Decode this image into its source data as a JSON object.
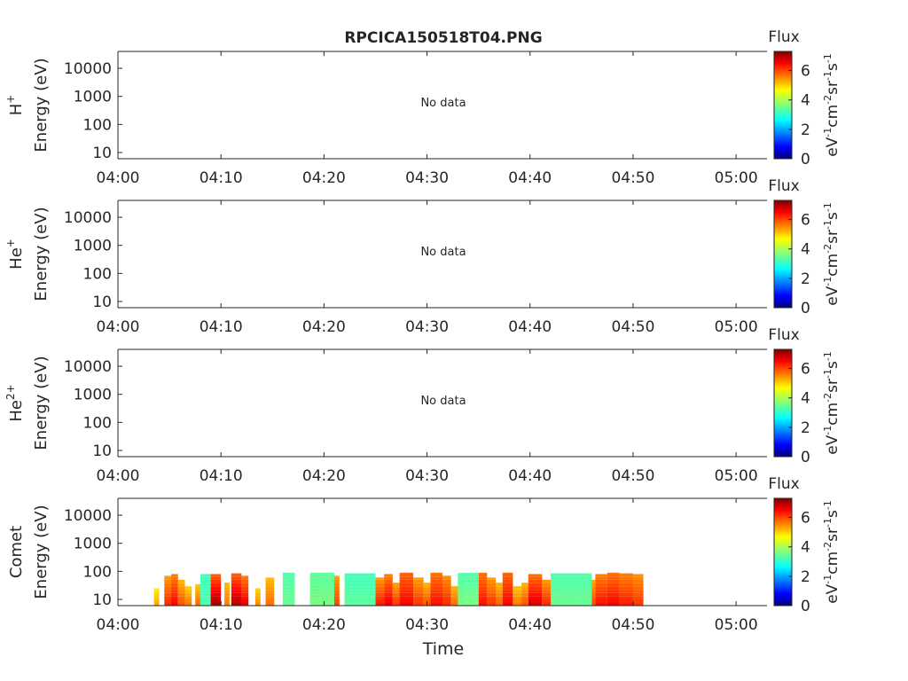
{
  "title": "RPCICA150518T04.PNG",
  "colors": {
    "axis": "#262626",
    "colormap": [
      "#00007f",
      "#0000ff",
      "#007fff",
      "#00ffff",
      "#7fff7f",
      "#ffff00",
      "#ff7f00",
      "#ff0000",
      "#7f0000"
    ]
  },
  "chart_data": [
    {
      "type": "heatmap",
      "ylabel_species": "H",
      "ylabel_superscript": "+",
      "ylabel_energy": "Energy (eV)",
      "yscale": "log",
      "ylim": [
        6,
        40000
      ],
      "yticks": [
        10,
        100,
        1000,
        10000
      ],
      "ytick_labels": [
        "10",
        "100",
        "1000",
        "10000"
      ],
      "xlim": [
        "04:00",
        "05:03"
      ],
      "xticks": [
        "04:00",
        "04:10",
        "04:20",
        "04:30",
        "04:40",
        "04:50",
        "05:00"
      ],
      "no_data_text": "No data",
      "colorbar": {
        "title": "Flux",
        "label": "eV-1cm-2sr-1s-1",
        "ticks": [
          0,
          2,
          4,
          6
        ],
        "range": [
          0,
          7.3
        ]
      },
      "cells": []
    },
    {
      "type": "heatmap",
      "ylabel_species": "He",
      "ylabel_superscript": "+",
      "ylabel_energy": "Energy (eV)",
      "yscale": "log",
      "ylim": [
        6,
        40000
      ],
      "yticks": [
        10,
        100,
        1000,
        10000
      ],
      "ytick_labels": [
        "10",
        "100",
        "1000",
        "10000"
      ],
      "xlim": [
        "04:00",
        "05:03"
      ],
      "xticks": [
        "04:00",
        "04:10",
        "04:20",
        "04:30",
        "04:40",
        "04:50",
        "05:00"
      ],
      "no_data_text": "No data",
      "colorbar": {
        "title": "Flux",
        "label": "eV-1cm-2sr-1s-1",
        "ticks": [
          0,
          2,
          4,
          6
        ],
        "range": [
          0,
          7.3
        ]
      },
      "cells": []
    },
    {
      "type": "heatmap",
      "ylabel_species": "He",
      "ylabel_superscript": "2+",
      "ylabel_energy": "Energy (eV)",
      "yscale": "log",
      "ylim": [
        6,
        40000
      ],
      "yticks": [
        10,
        100,
        1000,
        10000
      ],
      "ytick_labels": [
        "10",
        "100",
        "1000",
        "10000"
      ],
      "xlim": [
        "04:00",
        "05:03"
      ],
      "xticks": [
        "04:00",
        "04:10",
        "04:20",
        "04:30",
        "04:40",
        "04:50",
        "05:00"
      ],
      "no_data_text": "No data",
      "colorbar": {
        "title": "Flux",
        "label": "eV-1cm-2sr-1s-1",
        "ticks": [
          0,
          2,
          4,
          6
        ],
        "range": [
          0,
          7.3
        ]
      },
      "cells": []
    },
    {
      "type": "heatmap",
      "ylabel_species": "Comet",
      "ylabel_superscript": "",
      "ylabel_energy": "Energy (eV)",
      "xlabel": "Time",
      "yscale": "log",
      "ylim": [
        6,
        40000
      ],
      "yticks": [
        10,
        100,
        1000,
        10000
      ],
      "ytick_labels": [
        "10",
        "100",
        "1000",
        "10000"
      ],
      "xlim": [
        "04:00",
        "05:03"
      ],
      "xticks": [
        "04:00",
        "04:10",
        "04:20",
        "04:30",
        "04:40",
        "04:50",
        "05:00"
      ],
      "data_span": [
        "04:03",
        "04:51"
      ],
      "colorbar": {
        "title": "Flux",
        "label": "eV-1cm-2sr-1s-1",
        "ticks": [
          0,
          2,
          4,
          6
        ],
        "range": [
          0,
          7.3
        ]
      },
      "cells": [
        {
          "t0": "04:03:30",
          "t1": "04:04:00",
          "e_top": 25,
          "flux_low": 5.2,
          "flux_high": 4.6
        },
        {
          "t0": "04:04:30",
          "t1": "04:05:10",
          "e_top": 70,
          "flux_low": 6.1,
          "flux_high": 5.2
        },
        {
          "t0": "04:05:10",
          "t1": "04:05:50",
          "e_top": 80,
          "flux_low": 6.4,
          "flux_high": 5.4
        },
        {
          "t0": "04:05:50",
          "t1": "04:06:30",
          "e_top": 50,
          "flux_low": 5.8,
          "flux_high": 5.0
        },
        {
          "t0": "04:06:30",
          "t1": "04:07:10",
          "e_top": 30,
          "flux_low": 5.5,
          "flux_high": 4.8
        },
        {
          "t0": "04:07:30",
          "t1": "04:08:00",
          "e_top": 35,
          "flux_low": 5.6,
          "flux_high": 4.9
        },
        {
          "t0": "04:09:00",
          "t1": "04:10:00",
          "e_top": 80,
          "flux_low": 7.0,
          "flux_high": 5.6
        },
        {
          "t0": "04:10:20",
          "t1": "04:10:50",
          "e_top": 40,
          "flux_low": 5.5,
          "flux_high": 5.0
        },
        {
          "t0": "04:11:00",
          "t1": "04:12:00",
          "e_top": 85,
          "flux_low": 6.9,
          "flux_high": 5.6
        },
        {
          "t0": "04:12:00",
          "t1": "04:12:40",
          "e_top": 70,
          "flux_low": 6.5,
          "flux_high": 5.4
        },
        {
          "t0": "04:13:20",
          "t1": "04:13:50",
          "e_top": 25,
          "flux_low": 5.4,
          "flux_high": 4.8
        },
        {
          "t0": "04:14:20",
          "t1": "04:15:10",
          "e_top": 60,
          "flux_low": 5.6,
          "flux_high": 5.0
        },
        {
          "t0": "04:16:00",
          "t1": "04:16:20",
          "e_top": 20,
          "flux_low": 5.2,
          "flux_high": 4.6
        },
        {
          "t0": "04:16:50",
          "t1": "04:17:10",
          "e_top": 20,
          "flux_low": 5.0,
          "flux_high": 4.6
        },
        {
          "t0": "04:18:40",
          "t1": "04:19:30",
          "e_top": 80,
          "flux_low": 6.9,
          "flux_high": 5.6
        },
        {
          "t0": "04:19:30",
          "t1": "04:20:30",
          "e_top": 50,
          "flux_low": 5.6,
          "flux_high": 5.0
        },
        {
          "t0": "04:20:30",
          "t1": "04:21:30",
          "e_top": 70,
          "flux_low": 5.9,
          "flux_high": 5.2
        },
        {
          "t0": "04:22:00",
          "t1": "04:22:30",
          "e_top": 25,
          "flux_low": 5.3,
          "flux_high": 4.8
        },
        {
          "t0": "04:23:10",
          "t1": "04:23:40",
          "e_top": 20,
          "flux_low": 5.1,
          "flux_high": 4.6
        },
        {
          "t0": "04:24:00",
          "t1": "04:24:30",
          "e_top": 20,
          "flux_low": 5.0,
          "flux_high": 4.6
        },
        {
          "t0": "04:25:00",
          "t1": "04:25:50",
          "e_top": 60,
          "flux_low": 6.2,
          "flux_high": 5.2
        },
        {
          "t0": "04:25:50",
          "t1": "04:26:40",
          "e_top": 80,
          "flux_low": 6.5,
          "flux_high": 5.4
        },
        {
          "t0": "04:26:40",
          "t1": "04:27:20",
          "e_top": 40,
          "flux_low": 6.0,
          "flux_high": 5.1
        },
        {
          "t0": "04:27:20",
          "t1": "04:28:40",
          "e_top": 90,
          "flux_low": 6.4,
          "flux_high": 5.6
        },
        {
          "t0": "04:28:40",
          "t1": "04:29:40",
          "e_top": 60,
          "flux_low": 6.0,
          "flux_high": 5.2
        },
        {
          "t0": "04:29:40",
          "t1": "04:30:20",
          "e_top": 40,
          "flux_low": 5.8,
          "flux_high": 5.0
        },
        {
          "t0": "04:30:20",
          "t1": "04:31:30",
          "e_top": 90,
          "flux_low": 6.3,
          "flux_high": 5.5
        },
        {
          "t0": "04:31:30",
          "t1": "04:32:20",
          "e_top": 70,
          "flux_low": 6.1,
          "flux_high": 5.3
        },
        {
          "t0": "04:32:20",
          "t1": "04:33:00",
          "e_top": 30,
          "flux_low": 5.6,
          "flux_high": 5.0
        },
        {
          "t0": "04:33:00",
          "t1": "04:33:40",
          "e_top": 50,
          "flux_low": 5.9,
          "flux_high": 5.2
        },
        {
          "t0": "04:34:00",
          "t1": "04:34:40",
          "e_top": 25,
          "flux_low": 5.4,
          "flux_high": 4.9
        },
        {
          "t0": "04:35:00",
          "t1": "04:35:50",
          "e_top": 90,
          "flux_low": 6.3,
          "flux_high": 5.5
        },
        {
          "t0": "04:35:50",
          "t1": "04:36:40",
          "e_top": 60,
          "flux_low": 6.0,
          "flux_high": 5.2
        },
        {
          "t0": "04:36:40",
          "t1": "04:37:20",
          "e_top": 40,
          "flux_low": 5.7,
          "flux_high": 5.0
        },
        {
          "t0": "04:37:20",
          "t1": "04:38:20",
          "e_top": 90,
          "flux_low": 6.4,
          "flux_high": 5.6
        },
        {
          "t0": "04:38:20",
          "t1": "04:39:10",
          "e_top": 30,
          "flux_low": 5.5,
          "flux_high": 4.9
        },
        {
          "t0": "04:39:10",
          "t1": "04:39:50",
          "e_top": 40,
          "flux_low": 5.8,
          "flux_high": 5.0
        },
        {
          "t0": "04:39:50",
          "t1": "04:41:10",
          "e_top": 80,
          "flux_low": 6.6,
          "flux_high": 5.5
        },
        {
          "t0": "04:41:10",
          "t1": "04:42:10",
          "e_top": 50,
          "flux_low": 6.1,
          "flux_high": 5.2
        },
        {
          "t0": "04:42:10",
          "t1": "04:43:10",
          "e_top": 45,
          "flux_low": 6.0,
          "flux_high": 5.1
        },
        {
          "t0": "04:43:10",
          "t1": "04:44:20",
          "e_top": 40,
          "flux_low": 5.8,
          "flux_high": 5.0
        },
        {
          "t0": "04:44:20",
          "t1": "04:45:20",
          "e_top": 35,
          "flux_low": 5.7,
          "flux_high": 4.9
        },
        {
          "t0": "04:45:20",
          "t1": "04:46:20",
          "e_top": 50,
          "flux_low": 5.9,
          "flux_high": 5.1
        },
        {
          "t0": "04:46:20",
          "t1": "04:47:30",
          "e_top": 80,
          "flux_low": 6.3,
          "flux_high": 5.4
        },
        {
          "t0": "04:47:30",
          "t1": "04:48:40",
          "e_top": 90,
          "flux_low": 6.4,
          "flux_high": 5.5
        },
        {
          "t0": "04:48:40",
          "t1": "04:50:00",
          "e_top": 85,
          "flux_low": 6.2,
          "flux_high": 5.4
        },
        {
          "t0": "04:50:00",
          "t1": "04:51:00",
          "e_top": 80,
          "flux_low": 6.0,
          "flux_high": 5.3
        },
        {
          "t0": "04:16:00",
          "t1": "04:17:10",
          "e_top": 90,
          "flux_low": 3.5,
          "flux_high": 3.3
        },
        {
          "t0": "04:18:40",
          "t1": "04:21:00",
          "e_top": 90,
          "flux_low": 3.6,
          "flux_high": 3.4
        },
        {
          "t0": "04:22:00",
          "t1": "04:25:00",
          "e_top": 85,
          "flux_low": 3.4,
          "flux_high": 3.2
        },
        {
          "t0": "04:33:00",
          "t1": "04:35:00",
          "e_top": 88,
          "flux_low": 3.6,
          "flux_high": 3.3
        },
        {
          "t0": "04:42:00",
          "t1": "04:46:00",
          "e_top": 85,
          "flux_low": 3.5,
          "flux_high": 3.3
        },
        {
          "t0": "04:08:00",
          "t1": "04:09:00",
          "e_top": 80,
          "flux_low": 3.3,
          "flux_high": 3.2
        }
      ]
    }
  ]
}
